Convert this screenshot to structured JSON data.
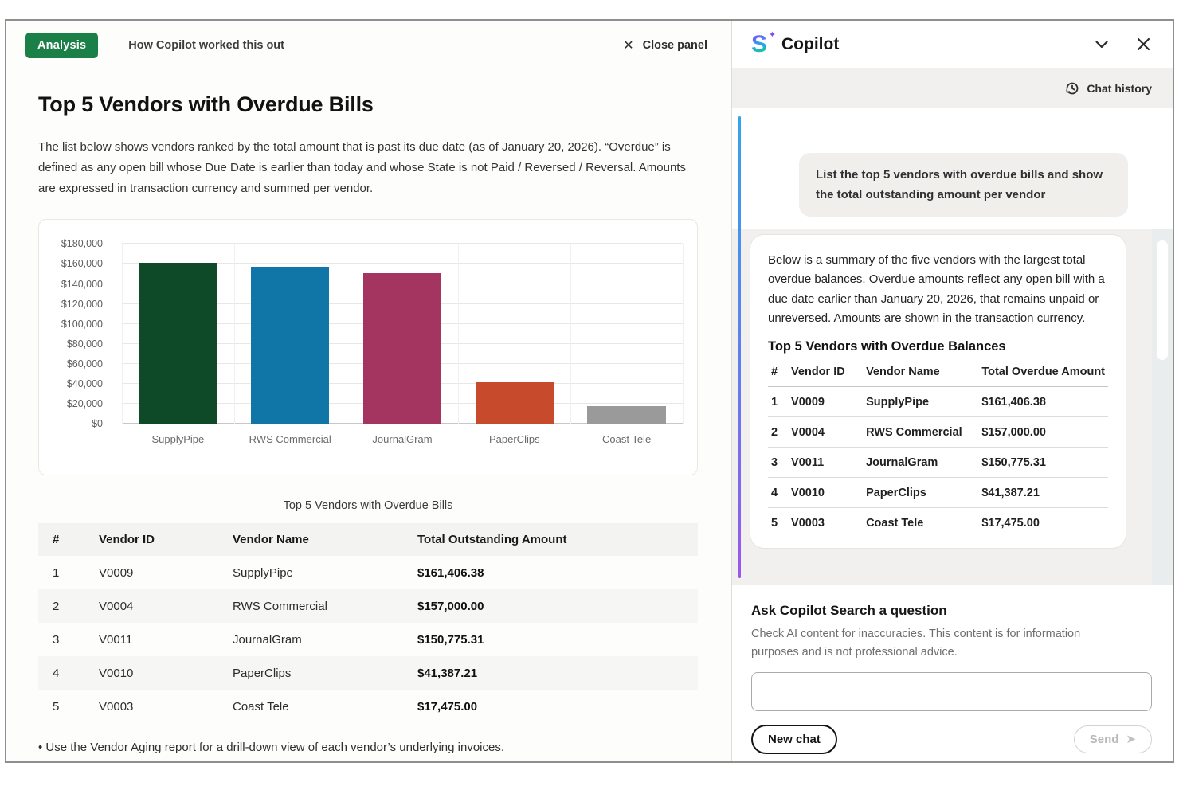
{
  "left_panel": {
    "badge": "Analysis",
    "tab_label": "How Copilot worked this out",
    "close_x": "✕",
    "close_label": "Close panel",
    "title": "Top 5 Vendors with Overdue Bills",
    "description": "The list below shows vendors ranked by the total amount that is past its due date (as of January 20, 2026). “Overdue” is defined as any open bill whose Due Date is earlier than today and whose State is not Paid / Reversed / Reversal. Amounts are expressed in transaction currency and summed per vendor.",
    "table_title": "Top 5 Vendors with Overdue Bills",
    "table": {
      "headers": [
        "#",
        "Vendor ID",
        "Vendor Name",
        "Total Outstanding Amount"
      ],
      "rows": [
        [
          "1",
          "V0009",
          "SupplyPipe",
          "$161,406.38"
        ],
        [
          "2",
          "V0004",
          "RWS Commercial",
          "$157,000.00"
        ],
        [
          "3",
          "V0011",
          "JournalGram",
          "$150,775.31"
        ],
        [
          "4",
          "V0010",
          "PaperClips",
          "$41,387.21"
        ],
        [
          "5",
          "V0003",
          "Coast Tele",
          "$17,475.00"
        ]
      ]
    },
    "footnote": "• Use the Vendor Aging report for a drill-down view of each vendor’s underlying invoices."
  },
  "chart_data": {
    "type": "bar",
    "categories": [
      "SupplyPipe",
      "RWS Commercial",
      "JournalGram",
      "PaperClips",
      "Coast Tele"
    ],
    "values": [
      161406.38,
      157000.0,
      150775.31,
      41387.21,
      17475.0
    ],
    "bar_colors": [
      "#0e4a28",
      "#0f76a7",
      "#a43561",
      "#c74a2d",
      "#9a9a9a"
    ],
    "title": "Top 5 Vendors with Overdue Bills",
    "xlabel": "",
    "ylabel": "",
    "ylim": [
      0,
      180000
    ],
    "ytick_values": [
      0,
      20000,
      40000,
      60000,
      80000,
      100000,
      120000,
      140000,
      160000,
      180000
    ],
    "ytick_labels": [
      "$0",
      "$20,000",
      "$40,000",
      "$60,000",
      "$80,000",
      "$100,000",
      "$120,000",
      "$140,000",
      "$160,000",
      "$180,000"
    ],
    "grid": true,
    "legend": "none"
  },
  "copilot": {
    "title": "Copilot",
    "logo_letter": "S",
    "logo_spark": "✦",
    "chat_history_label": "Chat history",
    "user_message": "List the top 5 vendors with overdue bills and show the total outstanding amount per vendor",
    "response": {
      "intro": "Below is a summary of the five vendors with the largest total overdue balances. Overdue amounts reflect any open bill with a due date earlier than January 20, 2026, that remains unpaid or unreversed. Amounts are shown in the transaction currency.",
      "table_heading": "Top 5 Vendors with Overdue Balances",
      "table": {
        "headers": [
          "#",
          "Vendor ID",
          "Vendor Name",
          "Total Overdue Amount"
        ],
        "rows": [
          [
            "1",
            "V0009",
            "SupplyPipe",
            "$161,406.38"
          ],
          [
            "2",
            "V0004",
            "RWS Commercial",
            "$157,000.00"
          ],
          [
            "3",
            "V0011",
            "JournalGram",
            "$150,775.31"
          ],
          [
            "4",
            "V0010",
            "PaperClips",
            "$41,387.21"
          ],
          [
            "5",
            "V0003",
            "Coast Tele",
            "$17,475.00"
          ]
        ]
      }
    },
    "footer": {
      "prompt_title": "Ask Copilot Search a question",
      "disclaimer": "Check AI content for inaccuracies. This content is for information purposes and is not professional advice.",
      "input_value": "",
      "new_chat_label": "New chat",
      "send_label": "Send",
      "send_arrow": "➤"
    }
  },
  "colors": {
    "badge_green": "#1a8048",
    "accent_gradient_top": "#35a3ec",
    "accent_gradient_bottom": "#9a55f2",
    "chat_bg": "#f1f0ee",
    "frame_border": "#8f8f8f"
  }
}
